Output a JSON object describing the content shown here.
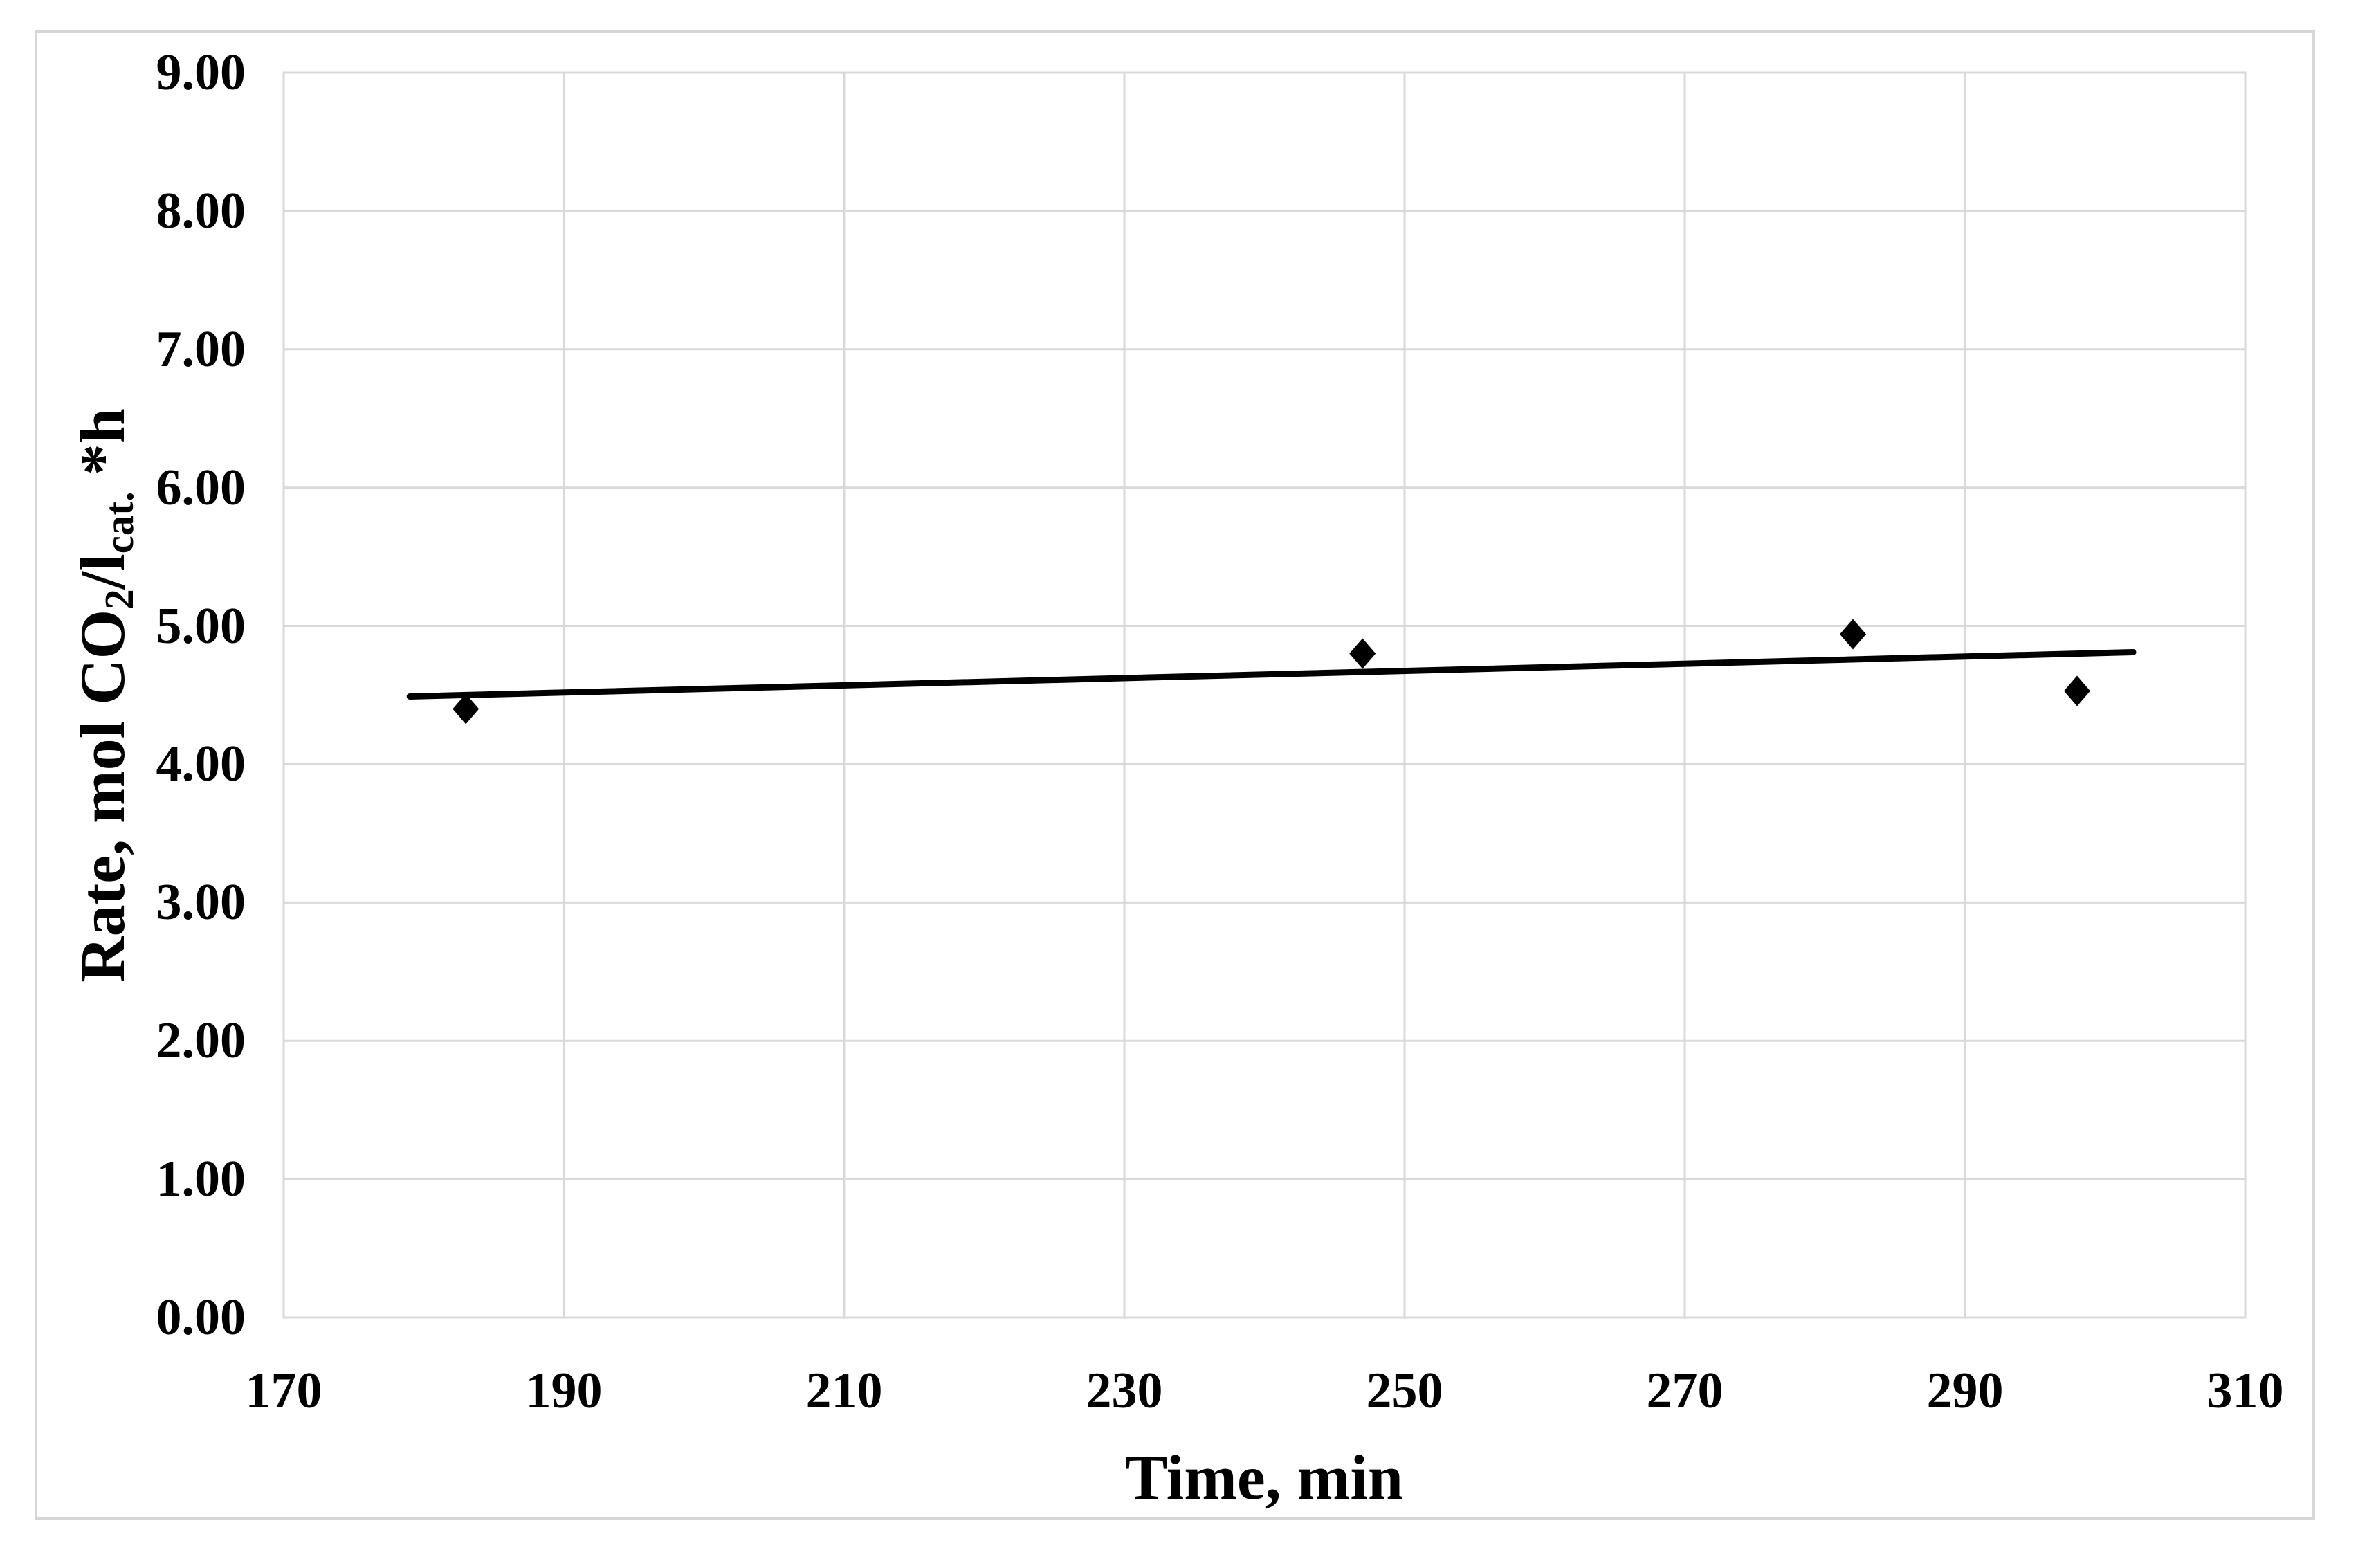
{
  "chart_data": {
    "type": "scatter",
    "title": "",
    "xlabel": "Time, min",
    "ylabel": "Rate, mol CO2/lcat. *h",
    "ylabel_parts": [
      {
        "text": "Rate, mol CO",
        "sub": false
      },
      {
        "text": "2",
        "sub": true
      },
      {
        "text": "/l",
        "sub": false
      },
      {
        "text": "cat.",
        "sub": true
      },
      {
        "text": " *h",
        "sub": false
      }
    ],
    "xlim": [
      170,
      310
    ],
    "xtick_step": 20,
    "xtick_labels": [
      "170",
      "190",
      "210",
      "230",
      "250",
      "270",
      "290",
      "310"
    ],
    "ylim": [
      0,
      9
    ],
    "ytick_step": 1,
    "ytick_labels": [
      "0.00",
      "1.00",
      "2.00",
      "3.00",
      "4.00",
      "5.00",
      "6.00",
      "7.00",
      "8.00",
      "9.00"
    ],
    "grid": true,
    "legend": "none",
    "marker": "diamond",
    "points": [
      {
        "x": 183,
        "y": 4.4
      },
      {
        "x": 247,
        "y": 4.8
      },
      {
        "x": 282,
        "y": 4.94
      },
      {
        "x": 298,
        "y": 4.53
      }
    ],
    "trendline": {
      "x1": 179,
      "y1": 4.49,
      "x2": 302,
      "y2": 4.81
    },
    "colors": {
      "marker": "#000000",
      "trendline": "#000000",
      "gridline": "#d9d9d9",
      "plot_border": "#d9d9d9",
      "frame_border": "#d6d6d6",
      "text": "#000000",
      "background": "#ffffff"
    }
  }
}
